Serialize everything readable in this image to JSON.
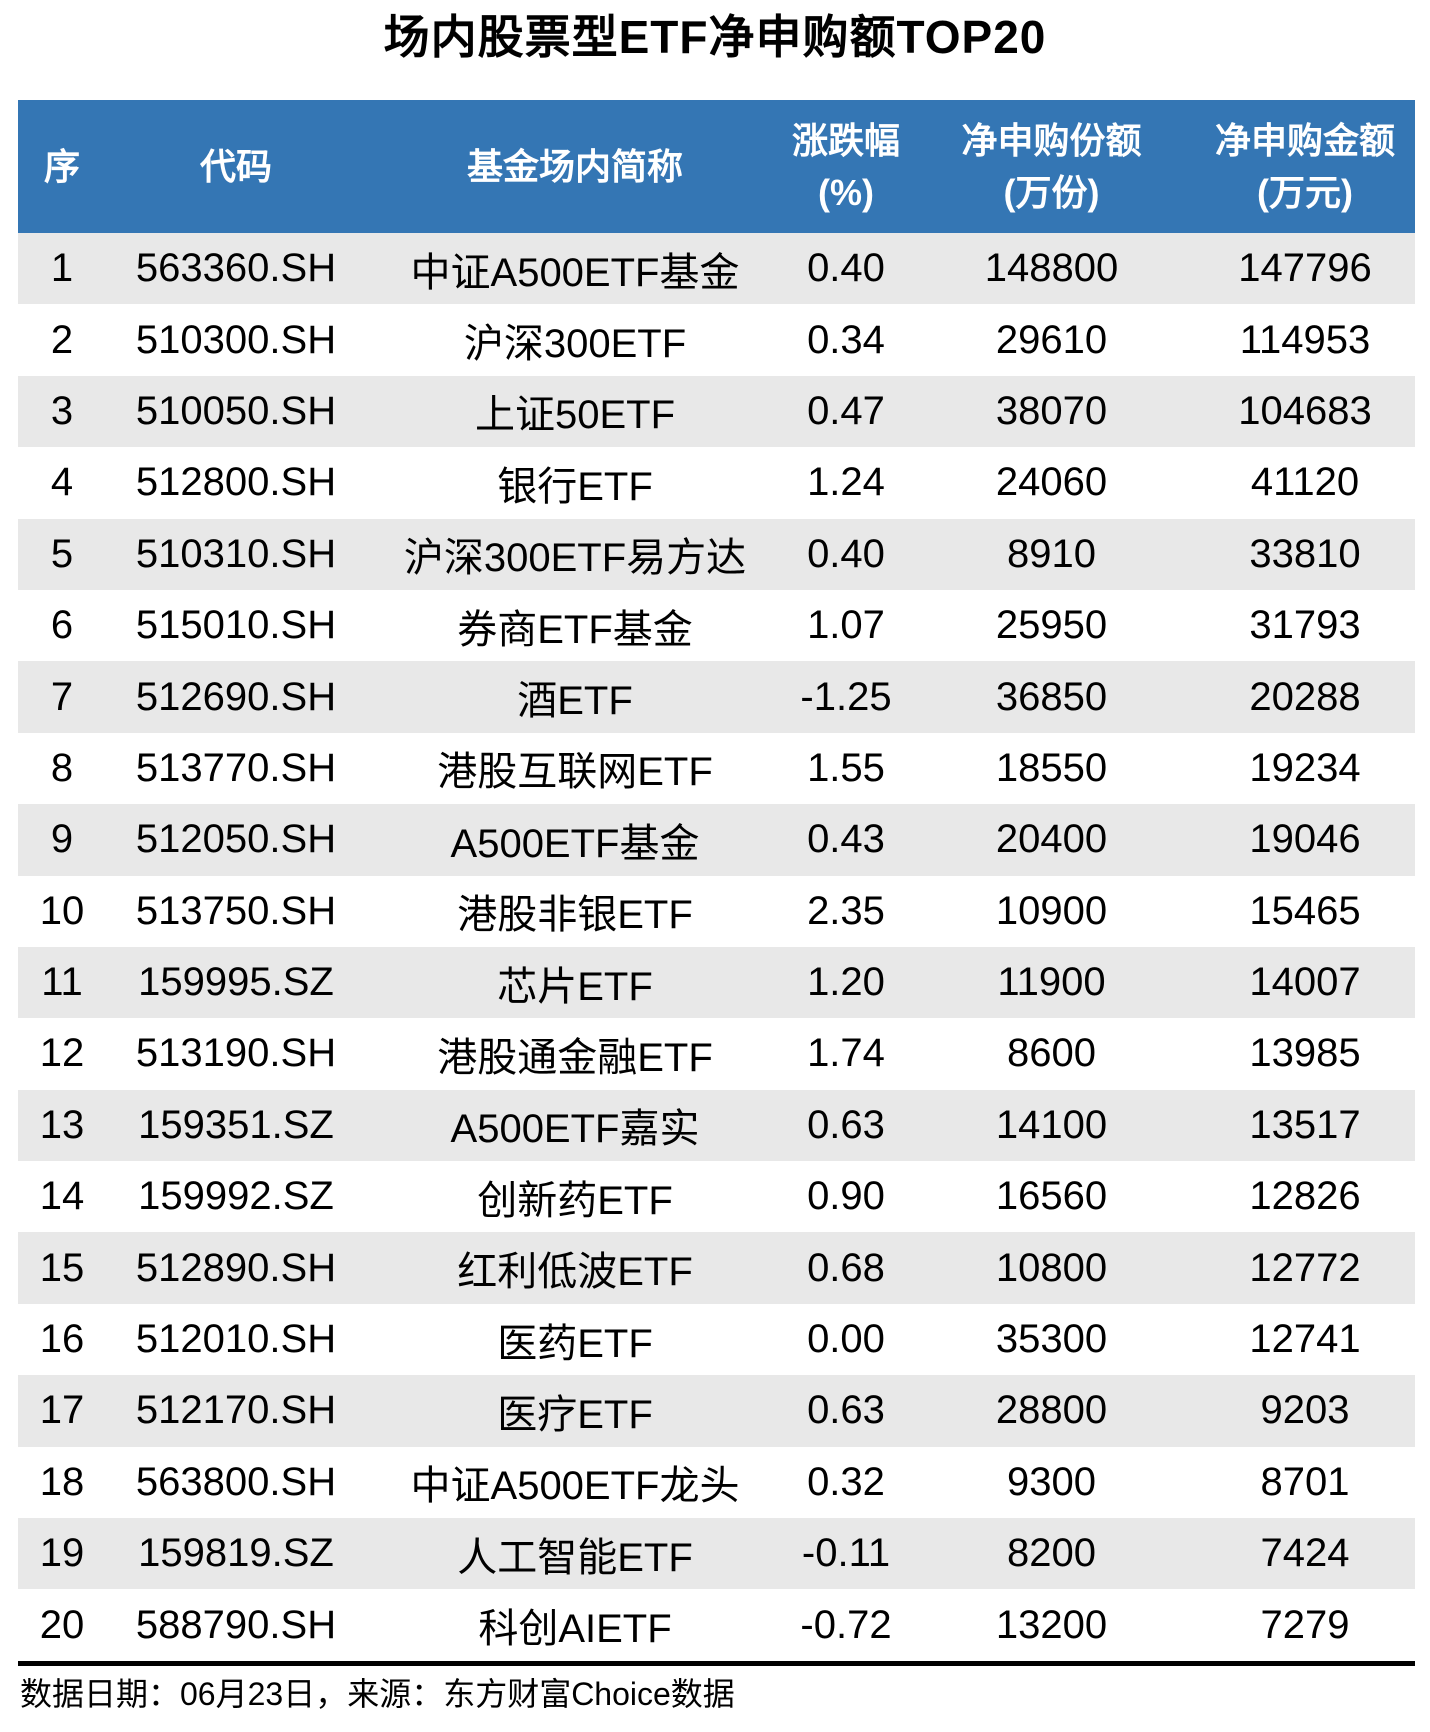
{
  "title": "场内股票型ETF净申购额TOP20",
  "colors": {
    "header_bg": "#3476b4",
    "header_text": "#ffffff",
    "row_alt_bg": "#e8e8e8",
    "row_bg": "#ffffff",
    "text": "#000000"
  },
  "table": {
    "headers": [
      {
        "label": "序",
        "sub": ""
      },
      {
        "label": "代码",
        "sub": ""
      },
      {
        "label": "基金场内简称",
        "sub": ""
      },
      {
        "label": "涨跌幅",
        "sub": "(%)"
      },
      {
        "label": "净申购份额",
        "sub": "(万份)"
      },
      {
        "label": "净申购金额",
        "sub": "(万元)"
      }
    ],
    "rows": [
      [
        "1",
        "563360.SH",
        "中证A500ETF基金",
        "0.40",
        "148800",
        "147796"
      ],
      [
        "2",
        "510300.SH",
        "沪深300ETF",
        "0.34",
        "29610",
        "114953"
      ],
      [
        "3",
        "510050.SH",
        "上证50ETF",
        "0.47",
        "38070",
        "104683"
      ],
      [
        "4",
        "512800.SH",
        "银行ETF",
        "1.24",
        "24060",
        "41120"
      ],
      [
        "5",
        "510310.SH",
        "沪深300ETF易方达",
        "0.40",
        "8910",
        "33810"
      ],
      [
        "6",
        "515010.SH",
        "券商ETF基金",
        "1.07",
        "25950",
        "31793"
      ],
      [
        "7",
        "512690.SH",
        "酒ETF",
        "-1.25",
        "36850",
        "20288"
      ],
      [
        "8",
        "513770.SH",
        "港股互联网ETF",
        "1.55",
        "18550",
        "19234"
      ],
      [
        "9",
        "512050.SH",
        "A500ETF基金",
        "0.43",
        "20400",
        "19046"
      ],
      [
        "10",
        "513750.SH",
        "港股非银ETF",
        "2.35",
        "10900",
        "15465"
      ],
      [
        "11",
        "159995.SZ",
        "芯片ETF",
        "1.20",
        "11900",
        "14007"
      ],
      [
        "12",
        "513190.SH",
        "港股通金融ETF",
        "1.74",
        "8600",
        "13985"
      ],
      [
        "13",
        "159351.SZ",
        "A500ETF嘉实",
        "0.63",
        "14100",
        "13517"
      ],
      [
        "14",
        "159992.SZ",
        "创新药ETF",
        "0.90",
        "16560",
        "12826"
      ],
      [
        "15",
        "512890.SH",
        "红利低波ETF",
        "0.68",
        "10800",
        "12772"
      ],
      [
        "16",
        "512010.SH",
        "医药ETF",
        "0.00",
        "35300",
        "12741"
      ],
      [
        "17",
        "512170.SH",
        "医疗ETF",
        "0.63",
        "28800",
        "9203"
      ],
      [
        "18",
        "563800.SH",
        "中证A500ETF龙头",
        "0.32",
        "9300",
        "8701"
      ],
      [
        "19",
        "159819.SZ",
        "人工智能ETF",
        "-0.11",
        "8200",
        "7424"
      ],
      [
        "20",
        "588790.SH",
        "科创AIETF",
        "-0.72",
        "13200",
        "7279"
      ]
    ]
  },
  "footer": {
    "text": "数据日期：06月23日，来源：东方财富Choice数据"
  },
  "chart_data": {
    "type": "table",
    "title": "场内股票型ETF净申购额TOP20",
    "columns": [
      "序",
      "代码",
      "基金场内简称",
      "涨跌幅(%)",
      "净申购份额(万份)",
      "净申购金额(万元)"
    ],
    "rows": [
      [
        1,
        "563360.SH",
        "中证A500ETF基金",
        0.4,
        148800,
        147796
      ],
      [
        2,
        "510300.SH",
        "沪深300ETF",
        0.34,
        29610,
        114953
      ],
      [
        3,
        "510050.SH",
        "上证50ETF",
        0.47,
        38070,
        104683
      ],
      [
        4,
        "512800.SH",
        "银行ETF",
        1.24,
        24060,
        41120
      ],
      [
        5,
        "510310.SH",
        "沪深300ETF易方达",
        0.4,
        8910,
        33810
      ],
      [
        6,
        "515010.SH",
        "券商ETF基金",
        1.07,
        25950,
        31793
      ],
      [
        7,
        "512690.SH",
        "酒ETF",
        -1.25,
        36850,
        20288
      ],
      [
        8,
        "513770.SH",
        "港股互联网ETF",
        1.55,
        18550,
        19234
      ],
      [
        9,
        "512050.SH",
        "A500ETF基金",
        0.43,
        20400,
        19046
      ],
      [
        10,
        "513750.SH",
        "港股非银ETF",
        2.35,
        10900,
        15465
      ],
      [
        11,
        "159995.SZ",
        "芯片ETF",
        1.2,
        11900,
        14007
      ],
      [
        12,
        "513190.SH",
        "港股通金融ETF",
        1.74,
        8600,
        13985
      ],
      [
        13,
        "159351.SZ",
        "A500ETF嘉实",
        0.63,
        14100,
        13517
      ],
      [
        14,
        "159992.SZ",
        "创新药ETF",
        0.9,
        16560,
        12826
      ],
      [
        15,
        "512890.SH",
        "红利低波ETF",
        0.68,
        10800,
        12772
      ],
      [
        16,
        "512010.SH",
        "医药ETF",
        0.0,
        35300,
        12741
      ],
      [
        17,
        "512170.SH",
        "医疗ETF",
        0.63,
        28800,
        9203
      ],
      [
        18,
        "563800.SH",
        "中证A500ETF龙头",
        0.32,
        9300,
        8701
      ],
      [
        19,
        "159819.SZ",
        "人工智能ETF",
        -0.11,
        8200,
        7424
      ],
      [
        20,
        "588790.SH",
        "科创AIETF",
        -0.72,
        13200,
        7279
      ]
    ],
    "note": "数据日期：06月23日，来源：东方财富Choice数据",
    "layout": {
      "alternating_row_shading": true,
      "shaded_rows": "odd",
      "header_style": "blue-band"
    }
  }
}
